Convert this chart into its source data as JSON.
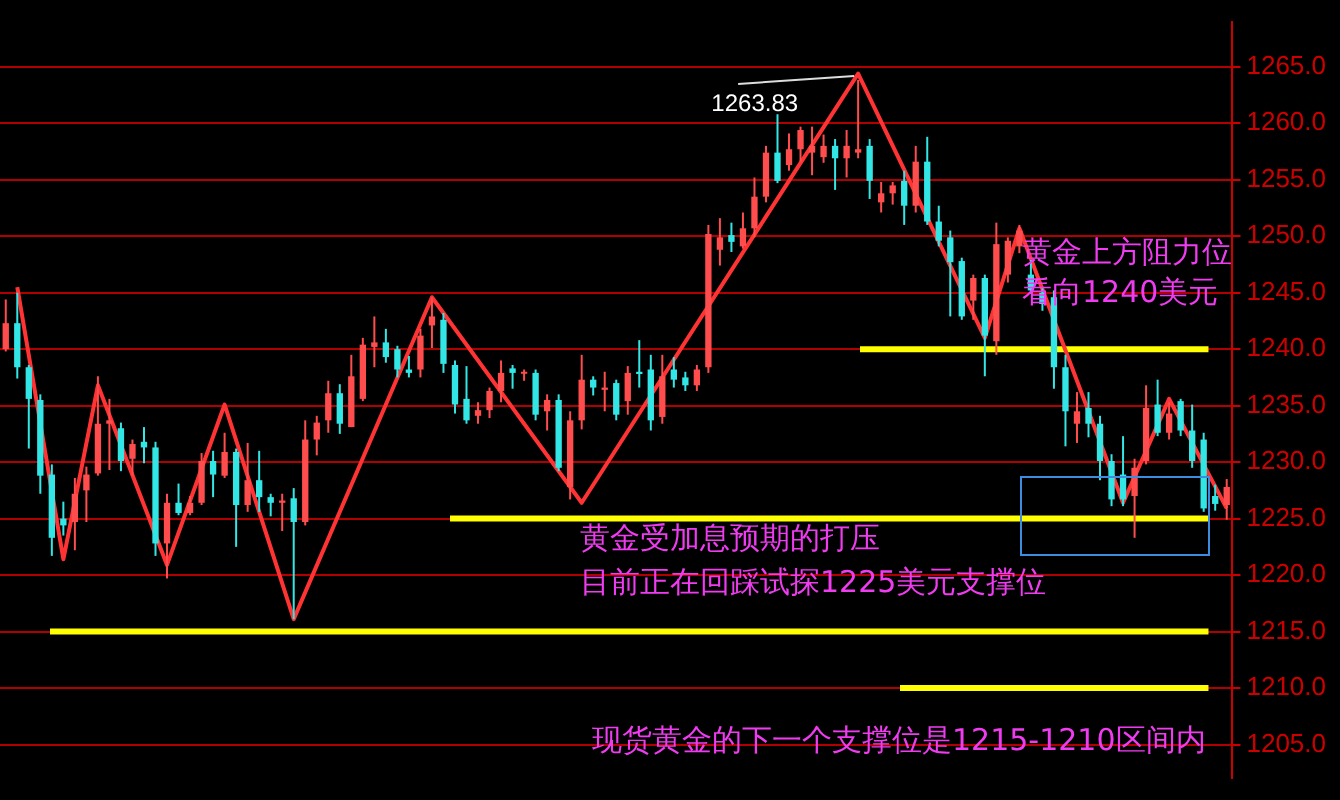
{
  "chart_data": {
    "type": "candlestick",
    "categories": [
      null,
      null,
      null,
      null,
      null,
      null,
      null,
      null,
      null,
      null,
      null,
      null,
      null,
      null,
      null,
      null,
      null,
      null,
      null,
      null,
      null,
      null,
      null,
      null,
      null,
      null,
      null,
      null,
      null,
      null,
      null,
      null,
      null,
      null,
      null,
      null,
      null,
      null,
      null,
      null,
      null,
      null,
      null,
      null,
      null,
      null,
      null,
      null,
      null,
      null,
      null,
      null,
      null,
      null,
      null,
      null,
      null,
      null,
      null,
      null,
      null,
      null,
      null,
      null,
      null,
      null,
      null,
      null,
      null,
      null,
      null,
      null,
      null,
      null,
      null,
      null,
      null,
      null,
      null,
      null,
      null,
      null,
      null,
      null,
      null,
      null,
      null,
      null,
      null,
      null,
      null,
      null,
      null,
      null,
      null,
      null,
      null,
      null,
      null,
      null,
      null,
      null,
      null,
      null,
      null,
      null,
      null
    ],
    "ohlc": [
      [
        1240,
        1244.4,
        1239.8,
        1242.3
      ],
      [
        1242.3,
        1245,
        1237.4,
        1238.4
      ],
      [
        1238.4,
        1238.6,
        1231.2,
        1235.6
      ],
      [
        1235.5,
        1236,
        1227.2,
        1228.8
      ],
      [
        1228.9,
        1229.8,
        1221.7,
        1223.3
      ],
      [
        1225,
        1226.5,
        1223.5,
        1224.4
      ],
      [
        1224.7,
        1228.6,
        1222.2,
        1227.2
      ],
      [
        1227.5,
        1229.6,
        1224.7,
        1228.9
      ],
      [
        1229,
        1237.6,
        1228.8,
        1233.4
      ],
      [
        1233.4,
        1235.6,
        1229.3,
        1233.7
      ],
      [
        1233,
        1233.5,
        1229.2,
        1230.1
      ],
      [
        1230.3,
        1232,
        1228.8,
        1231.6
      ],
      [
        1231.8,
        1233.1,
        1229.9,
        1231.3
      ],
      [
        1231.3,
        1231.8,
        1221.7,
        1222.8
      ],
      [
        1222.8,
        1227.2,
        1219.7,
        1226.4
      ],
      [
        1226.4,
        1228.1,
        1225.3,
        1225.5
      ],
      [
        1225.5,
        1227,
        1225.3,
        1226.4
      ],
      [
        1226.4,
        1230.8,
        1226.2,
        1230.1
      ],
      [
        1230.1,
        1231,
        1226.9,
        1228.9
      ],
      [
        1228.8,
        1232.6,
        1228.6,
        1230.9
      ],
      [
        1230.9,
        1231.2,
        1222.5,
        1226.2
      ],
      [
        1226.2,
        1231.7,
        1225.6,
        1228.4
      ],
      [
        1228.4,
        1231,
        1225.6,
        1226.9
      ],
      [
        1226.9,
        1227.2,
        1225.2,
        1226.4
      ],
      [
        1226.4,
        1227.2,
        1223.9,
        1226.6
      ],
      [
        1226.8,
        1227.7,
        1216.1,
        1224.7
      ],
      [
        1224.7,
        1233.7,
        1224.4,
        1232
      ],
      [
        1232,
        1234.1,
        1230.6,
        1233.5
      ],
      [
        1233.7,
        1237.2,
        1232.6,
        1236.1
      ],
      [
        1236.1,
        1236.9,
        1232.5,
        1233.4
      ],
      [
        1233.1,
        1239.5,
        1233.1,
        1237.6
      ],
      [
        1235.6,
        1241,
        1235.4,
        1240.4
      ],
      [
        1240.2,
        1242.9,
        1238.4,
        1240.6
      ],
      [
        1240.6,
        1241.8,
        1238.8,
        1239.3
      ],
      [
        1240,
        1240.3,
        1237.5,
        1238.2
      ],
      [
        1238.2,
        1239.4,
        1237.5,
        1237.9
      ],
      [
        1238.2,
        1241.8,
        1237.5,
        1241.2
      ],
      [
        1242.1,
        1244.6,
        1240.1,
        1242.9
      ],
      [
        1242.6,
        1243.2,
        1237.9,
        1238.7
      ],
      [
        1238.6,
        1239,
        1234.3,
        1235.1
      ],
      [
        1235.6,
        1238.5,
        1233.4,
        1233.7
      ],
      [
        1234.1,
        1235.3,
        1233.4,
        1234.6
      ],
      [
        1234.6,
        1236.6,
        1233.9,
        1236.3
      ],
      [
        1236.3,
        1239,
        1235.3,
        1237.9
      ],
      [
        1238.3,
        1238.6,
        1236.5,
        1237.9
      ],
      [
        1237.9,
        1238.2,
        1237.2,
        1238
      ],
      [
        1237.9,
        1238.2,
        1233.7,
        1234.2
      ],
      [
        1234.5,
        1236,
        1232.8,
        1235.5
      ],
      [
        1235.5,
        1236,
        1229.2,
        1229.5
      ],
      [
        1227.8,
        1234.5,
        1226.7,
        1233.7
      ],
      [
        1233.7,
        1239.5,
        1232.9,
        1237.3
      ],
      [
        1237.3,
        1237.6,
        1235.9,
        1236.6
      ],
      [
        1236.4,
        1238,
        1234.5,
        1236.6
      ],
      [
        1237,
        1237.3,
        1233.7,
        1234.2
      ],
      [
        1235.4,
        1238.5,
        1234.2,
        1237.9
      ],
      [
        1238,
        1240.8,
        1236.6,
        1237.8
      ],
      [
        1238.2,
        1239.5,
        1232.8,
        1233.7
      ],
      [
        1234,
        1239.5,
        1233.4,
        1237.6
      ],
      [
        1238.2,
        1239.3,
        1236.6,
        1237.3
      ],
      [
        1237.5,
        1238,
        1236.3,
        1236.8
      ],
      [
        1236.8,
        1238.6,
        1236.3,
        1238.2
      ],
      [
        1238.4,
        1251,
        1237.9,
        1250.2
      ],
      [
        1248.8,
        1251.6,
        1247.4,
        1249.9
      ],
      [
        1250.1,
        1251.2,
        1248.6,
        1249.5
      ],
      [
        1249.1,
        1252.1,
        1248.9,
        1250.7
      ],
      [
        1250.7,
        1255.2,
        1249.9,
        1253.5
      ],
      [
        1253.5,
        1258,
        1253,
        1257.4
      ],
      [
        1257.4,
        1260.8,
        1254.7,
        1254.9
      ],
      [
        1256.3,
        1259.1,
        1255.8,
        1257.7
      ],
      [
        1257.7,
        1259.7,
        1256.6,
        1259.4
      ],
      [
        1257.4,
        1259.7,
        1255.4,
        1258
      ],
      [
        1257,
        1259,
        1256.5,
        1258
      ],
      [
        1258,
        1258.6,
        1254.1,
        1256.9
      ],
      [
        1256.9,
        1259.4,
        1255.2,
        1258
      ],
      [
        1257.4,
        1263.83,
        1256.9,
        1257.7
      ],
      [
        1258,
        1258.6,
        1253.3,
        1254.9
      ],
      [
        1253,
        1254.8,
        1252.1,
        1253.8
      ],
      [
        1253.8,
        1254.8,
        1252.8,
        1254.5
      ],
      [
        1254.9,
        1255.8,
        1251,
        1252.7
      ],
      [
        1252.7,
        1258,
        1252.1,
        1256.6
      ],
      [
        1256.6,
        1258.8,
        1251,
        1251.3
      ],
      [
        1251.3,
        1252.7,
        1249.1,
        1249.6
      ],
      [
        1249.9,
        1250.5,
        1242.9,
        1247.7
      ],
      [
        1247.8,
        1248.1,
        1242.6,
        1242.9
      ],
      [
        1244.3,
        1246.6,
        1242.6,
        1246.3
      ],
      [
        1246.3,
        1246.6,
        1237.6,
        1241.2
      ],
      [
        1240.7,
        1251.2,
        1239.5,
        1249.3
      ],
      [
        1246.6,
        1249.9,
        1245.9,
        1249.6
      ],
      [
        1249.1,
        1251,
        1248.5,
        1250.5
      ],
      [
        1246.6,
        1247.9,
        1244.9,
        1245.2
      ],
      [
        1245,
        1245.4,
        1243.4,
        1244
      ],
      [
        1244.6,
        1245.2,
        1236.5,
        1238.4
      ],
      [
        1238.4,
        1239.5,
        1231.4,
        1234.5
      ],
      [
        1233.4,
        1236.2,
        1231.7,
        1234.5
      ],
      [
        1234.8,
        1236.2,
        1232.2,
        1233.4
      ],
      [
        1233.4,
        1234.1,
        1228.4,
        1230.1
      ],
      [
        1230.1,
        1230.7,
        1226.1,
        1226.7
      ],
      [
        1228.9,
        1232.3,
        1226.1,
        1226.7
      ],
      [
        1227,
        1230.3,
        1223.3,
        1229.5
      ],
      [
        1230.1,
        1236.8,
        1229.8,
        1234.8
      ],
      [
        1235.1,
        1237.3,
        1232.3,
        1232.6
      ],
      [
        1232.6,
        1235.3,
        1232,
        1234.3
      ],
      [
        1235.4,
        1235.6,
        1232.3,
        1232.8
      ],
      [
        1232.8,
        1235.1,
        1229.5,
        1230.1
      ],
      [
        1232,
        1232.6,
        1225.6,
        1225.9
      ],
      [
        1227,
        1228,
        1225.7,
        1226.3
      ],
      [
        1226.2,
        1228.5,
        1224.9,
        1227.8
      ]
    ],
    "colors": [
      "#ff4d4d",
      "#33e6e6",
      "#33e6e6",
      "#33e6e6",
      "#33e6e6",
      "#33e6e6",
      "#ff4d4d",
      "#ff4d4d",
      "#ff4d4d",
      "#ff4d4d",
      "#33e6e6",
      "#ff4d4d",
      "#33e6e6",
      "#33e6e6",
      "#ff4d4d",
      "#33e6e6",
      "#ff4d4d",
      "#ff4d4d",
      "#33e6e6",
      "#ff4d4d",
      "#33e6e6",
      "#ff4d4d",
      "#33e6e6",
      "#33e6e6",
      "#ff4d4d",
      "#33e6e6",
      "#ff4d4d",
      "#ff4d4d",
      "#ff4d4d",
      "#33e6e6",
      "#ff4d4d",
      "#ff4d4d",
      "#ff4d4d",
      "#33e6e6",
      "#33e6e6",
      "#33e6e6",
      "#ff4d4d",
      "#ff4d4d",
      "#33e6e6",
      "#33e6e6",
      "#33e6e6",
      "#ff4d4d",
      "#ff4d4d",
      "#ff4d4d",
      "#33e6e6",
      "#ff4d4d",
      "#33e6e6",
      "#ff4d4d",
      "#33e6e6",
      "#ff4d4d",
      "#ff4d4d",
      "#33e6e6",
      "#ff4d4d",
      "#33e6e6",
      "#ff4d4d",
      "#33e6e6",
      "#33e6e6",
      "#ff4d4d",
      "#33e6e6",
      "#33e6e6",
      "#ff4d4d",
      "#ff4d4d",
      "#ff4d4d",
      "#33e6e6",
      "#ff4d4d",
      "#ff4d4d",
      "#ff4d4d",
      "#33e6e6",
      "#ff4d4d",
      "#ff4d4d",
      "#ff4d4d",
      "#ff4d4d",
      "#33e6e6",
      "#ff4d4d",
      "#ff4d4d",
      "#33e6e6",
      "#ff4d4d",
      "#ff4d4d",
      "#33e6e6",
      "#ff4d4d",
      "#33e6e6",
      "#33e6e6",
      "#33e6e6",
      "#33e6e6",
      "#ff4d4d",
      "#33e6e6",
      "#ff4d4d",
      "#ff4d4d",
      "#ff4d4d",
      "#33e6e6",
      "#33e6e6",
      "#33e6e6",
      "#33e6e6",
      "#ff4d4d",
      "#33e6e6",
      "#33e6e6",
      "#33e6e6",
      "#33e6e6",
      "#ff4d4d",
      "#ff4d4d",
      "#33e6e6",
      "#ff4d4d",
      "#33e6e6",
      "#33e6e6",
      "#33e6e6",
      "#33e6e6",
      "#ff4d4d"
    ],
    "series": [
      {
        "type": "line",
        "color": "#ff3333",
        "values": [
          null,
          1245.5,
          null,
          null,
          null,
          1221.4,
          null,
          null,
          1236.8,
          null,
          null,
          null,
          null,
          null,
          1220.9,
          null,
          null,
          null,
          null,
          1235.1,
          null,
          null,
          null,
          null,
          null,
          1216.1,
          null,
          null,
          null,
          null,
          null,
          null,
          null,
          null,
          null,
          null,
          null,
          1244.6,
          null,
          null,
          null,
          null,
          null,
          null,
          null,
          null,
          null,
          null,
          null,
          null,
          1226.4,
          null,
          null,
          null,
          null,
          null,
          null,
          null,
          null,
          null,
          null,
          null,
          null,
          null,
          null,
          null,
          null,
          null,
          null,
          null,
          null,
          null,
          null,
          null,
          1264.4,
          null,
          null,
          null,
          null,
          null,
          null,
          null,
          null,
          null,
          null,
          1241,
          null,
          null,
          1250.7,
          null,
          null,
          null,
          null,
          null,
          null,
          null,
          null,
          1226.4,
          null,
          null,
          null,
          1235.6,
          null,
          null,
          null,
          null,
          1225.9
        ]
      }
    ],
    "ylim": [
      1202,
      1269
    ],
    "yticks": [
      {
        "value": 1205,
        "label": "1205.0"
      },
      {
        "value": 1210,
        "label": "1210.0"
      },
      {
        "value": 1215,
        "label": "1215.0"
      },
      {
        "value": 1220,
        "label": "1220.0"
      },
      {
        "value": 1225,
        "label": "1225.0"
      },
      {
        "value": 1230,
        "label": "1230.0"
      },
      {
        "value": 1235,
        "label": "1235.0"
      },
      {
        "value": 1240,
        "label": "1240.0"
      },
      {
        "value": 1245,
        "label": "1245.0"
      },
      {
        "value": 1250,
        "label": "1250.0"
      },
      {
        "value": 1255,
        "label": "1255.0"
      },
      {
        "value": 1260,
        "label": "1260.0"
      },
      {
        "value": 1265,
        "label": "1265.0"
      }
    ],
    "ref_lines": [
      {
        "axis": "y",
        "value": 1240,
        "color": "#ffff00"
      },
      {
        "axis": "y",
        "value": 1225,
        "color": "#ffff00"
      },
      {
        "axis": "y",
        "value": 1215,
        "color": "#ffff00"
      },
      {
        "axis": "y",
        "value": 1210,
        "color": "#ffff00"
      }
    ],
    "annotations": [
      "1263.83",
      "黄金上方阻力位",
      "看向1240美元",
      "黄金受加息预期的打压",
      "目前正在回踩试探1225美元支撑位",
      "现货黄金的下一个支撑位是1215-1210区间内"
    ],
    "grid": "y",
    "tick_labels": "y",
    "marker": "none",
    "legend": false
  }
}
